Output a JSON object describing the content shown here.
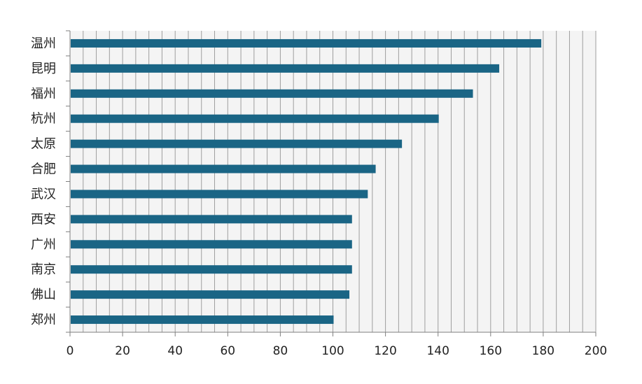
{
  "chart_data": {
    "type": "bar",
    "orientation": "horizontal",
    "categories": [
      "温州",
      "昆明",
      "福州",
      "杭州",
      "太原",
      "合肥",
      "武汉",
      "西安",
      "广州",
      "南京",
      "佛山",
      "郑州"
    ],
    "values": [
      179,
      163,
      153,
      140,
      126,
      116,
      113,
      107,
      107,
      107,
      106,
      100
    ],
    "xlim": [
      0,
      200
    ],
    "xticks": [
      "0",
      "20",
      "40",
      "60",
      "80",
      "100",
      "120",
      "140",
      "160",
      "180",
      "200"
    ],
    "title": "",
    "xlabel": "",
    "ylabel": "",
    "grid": "vertical minor lines",
    "legend": "none",
    "bar_color": "#1a6585",
    "plot_background": "#f4f4f4"
  }
}
